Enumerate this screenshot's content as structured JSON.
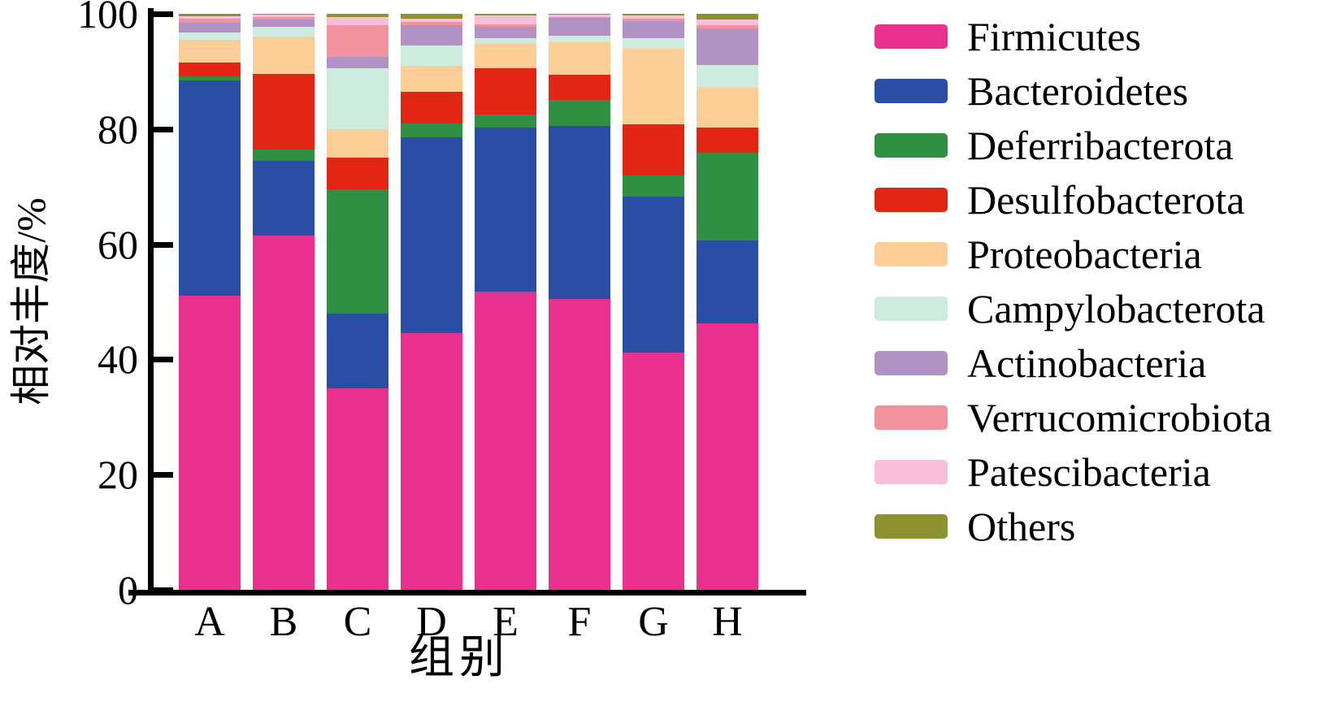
{
  "figure": {
    "background": "#ffffff",
    "axis_color": "#000000",
    "text_color": "#000000"
  },
  "chart_data": {
    "type": "bar",
    "stacked": true,
    "title": "",
    "xlabel": "组别",
    "ylabel": "相对丰度/%",
    "ylim": [
      0,
      100
    ],
    "yticks": [
      0,
      20,
      40,
      60,
      80,
      100
    ],
    "grid": false,
    "legend_position": "right",
    "categories": [
      "A",
      "B",
      "C",
      "D",
      "E",
      "F",
      "G",
      "H"
    ],
    "series": [
      {
        "name": "Firmicutes",
        "color": "#E8308F",
        "values": [
          51.0,
          61.5,
          35.0,
          44.5,
          51.8,
          50.5,
          41.2,
          46.2
        ]
      },
      {
        "name": "Bacteroidetes",
        "color": "#2A4DA6",
        "values": [
          37.5,
          13.0,
          13.0,
          34.0,
          28.4,
          30.0,
          27.1,
          14.5
        ]
      },
      {
        "name": "Deferribacterota",
        "color": "#2F8F42",
        "values": [
          0.7,
          2.0,
          21.5,
          2.5,
          2.3,
          4.6,
          3.6,
          15.2
        ]
      },
      {
        "name": "Desulfobacterota",
        "color": "#E32514",
        "values": [
          2.3,
          13.0,
          5.5,
          5.5,
          8.0,
          4.3,
          8.9,
          4.3
        ]
      },
      {
        "name": "Proteobacteria",
        "color": "#FACE96",
        "values": [
          4.0,
          6.5,
          5.0,
          4.5,
          4.3,
          5.6,
          13.2,
          6.9
        ]
      },
      {
        "name": "Campylobacterota",
        "color": "#CEEBDF",
        "values": [
          1.3,
          1.8,
          10.5,
          3.5,
          1.0,
          1.2,
          1.7,
          4.0
        ]
      },
      {
        "name": "Actinobacteria",
        "color": "#B292C5",
        "values": [
          1.7,
          1.2,
          2.0,
          3.5,
          2.0,
          3.1,
          3.0,
          6.3
        ]
      },
      {
        "name": "Verrucomicrobiota",
        "color": "#F2929C",
        "values": [
          0.7,
          0.4,
          5.5,
          0.6,
          0.4,
          0.2,
          0.4,
          0.6
        ]
      },
      {
        "name": "Patescibacteria",
        "color": "#F9BED9",
        "values": [
          0.4,
          0.4,
          1.5,
          0.6,
          1.5,
          0.3,
          0.6,
          1.0
        ]
      },
      {
        "name": "Others",
        "color": "#8E9130",
        "values": [
          0.4,
          0.2,
          0.5,
          0.8,
          0.3,
          0.2,
          0.3,
          1.0
        ]
      }
    ]
  }
}
